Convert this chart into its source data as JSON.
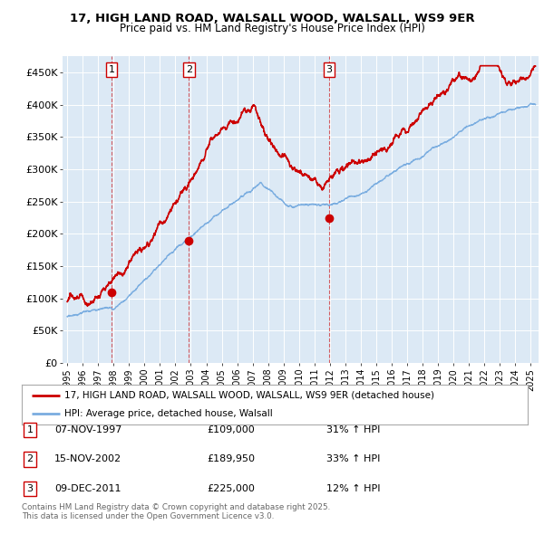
{
  "title": "17, HIGH LAND ROAD, WALSALL WOOD, WALSALL, WS9 9ER",
  "subtitle": "Price paid vs. HM Land Registry's House Price Index (HPI)",
  "ylabel_ticks": [
    "£0",
    "£50K",
    "£100K",
    "£150K",
    "£200K",
    "£250K",
    "£300K",
    "£350K",
    "£400K",
    "£450K"
  ],
  "ytick_values": [
    0,
    50000,
    100000,
    150000,
    200000,
    250000,
    300000,
    350000,
    400000,
    450000
  ],
  "ylim": [
    0,
    475000
  ],
  "xlim_start": 1994.7,
  "xlim_end": 2025.5,
  "red_line_color": "#cc0000",
  "blue_line_color": "#7aade0",
  "plot_bg_color": "#dce9f5",
  "purchases": [
    {
      "year": 1997.87,
      "price": 109000,
      "label": "1"
    },
    {
      "year": 2002.88,
      "price": 189950,
      "label": "2"
    },
    {
      "year": 2011.94,
      "price": 225000,
      "label": "3"
    }
  ],
  "legend_red_label": "17, HIGH LAND ROAD, WALSALL WOOD, WALSALL, WS9 9ER (detached house)",
  "legend_blue_label": "HPI: Average price, detached house, Walsall",
  "table_rows": [
    {
      "num": "1",
      "date": "07-NOV-1997",
      "price": "£109,000",
      "hpi": "31% ↑ HPI"
    },
    {
      "num": "2",
      "date": "15-NOV-2002",
      "price": "£189,950",
      "hpi": "33% ↑ HPI"
    },
    {
      "num": "3",
      "date": "09-DEC-2011",
      "price": "£225,000",
      "hpi": "12% ↑ HPI"
    }
  ],
  "footer": "Contains HM Land Registry data © Crown copyright and database right 2025.\nThis data is licensed under the Open Government Licence v3.0.",
  "bg_color": "#ffffff",
  "grid_color": "#ffffff"
}
